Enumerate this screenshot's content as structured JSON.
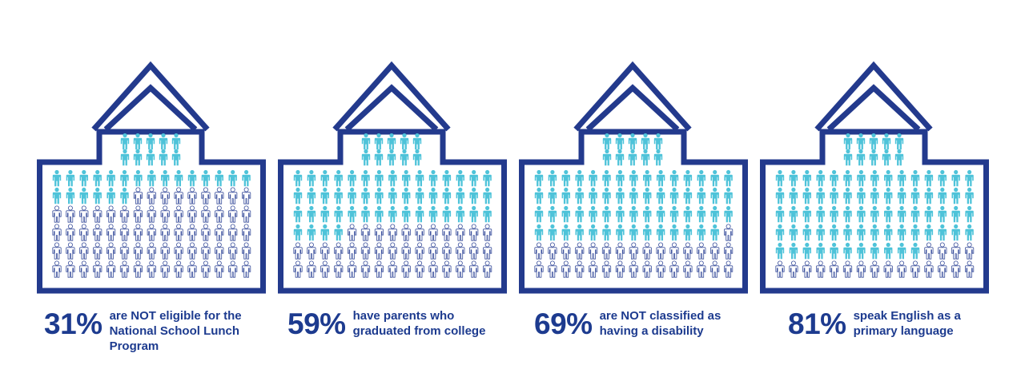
{
  "colors": {
    "outline": "#233a8d",
    "filled": "#4ec3d9",
    "empty_stroke": "#3a4f9c",
    "text": "#1d3b8f"
  },
  "icon_name": "person-icon",
  "panels": [
    {
      "percent_label": "31%",
      "description": "are NOT eligible for the\nNational School Lunch\nProgram",
      "percent_value": 31
    },
    {
      "percent_label": "59%",
      "description": "have parents who\ngraduated from college",
      "percent_value": 59
    },
    {
      "percent_label": "69%",
      "description": "are NOT classified as\nhaving a disability",
      "percent_value": 69
    },
    {
      "percent_label": "81%",
      "description": "speak English as a\nprimary language",
      "percent_value": 81
    }
  ]
}
